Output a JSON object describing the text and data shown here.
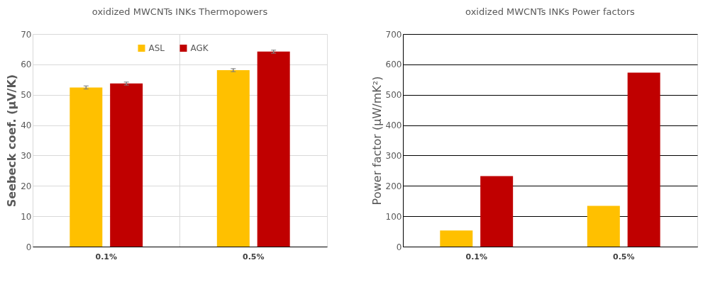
{
  "chart_data": [
    {
      "type": "bar",
      "title": "oxidized MWCNTs INKs Thermopowers",
      "ylabel": "Seebeck coef. (μV/K)",
      "categories": [
        "0.1%",
        "0.5%"
      ],
      "series": [
        {
          "name": "ASL",
          "color": "#ffc000",
          "values": [
            52.4,
            58.1
          ],
          "errors": [
            0.5,
            0.5
          ]
        },
        {
          "name": "AGK",
          "color": "#c00000",
          "values": [
            53.7,
            64.2
          ],
          "errors": [
            0.5,
            0.5
          ]
        }
      ],
      "ylim": [
        0,
        70
      ],
      "yticks": [
        0,
        10,
        20,
        30,
        40,
        50,
        60,
        70
      ],
      "grid": true,
      "legend": "top"
    },
    {
      "type": "bar",
      "title": "oxidized MWCNTs INKs Power factors",
      "ylabel": "Power factor (μW/mK²)",
      "categories": [
        "0.1%",
        "0.5%"
      ],
      "series": [
        {
          "name": "ASL",
          "color": "#ffc000",
          "values": [
            53,
            134
          ]
        },
        {
          "name": "AGK",
          "color": "#c00000",
          "values": [
            232,
            573
          ]
        }
      ],
      "ylim": [
        0,
        700
      ],
      "yticks": [
        0,
        100,
        200,
        300,
        400,
        500,
        600,
        700
      ],
      "grid": "y",
      "legend": "top"
    }
  ]
}
